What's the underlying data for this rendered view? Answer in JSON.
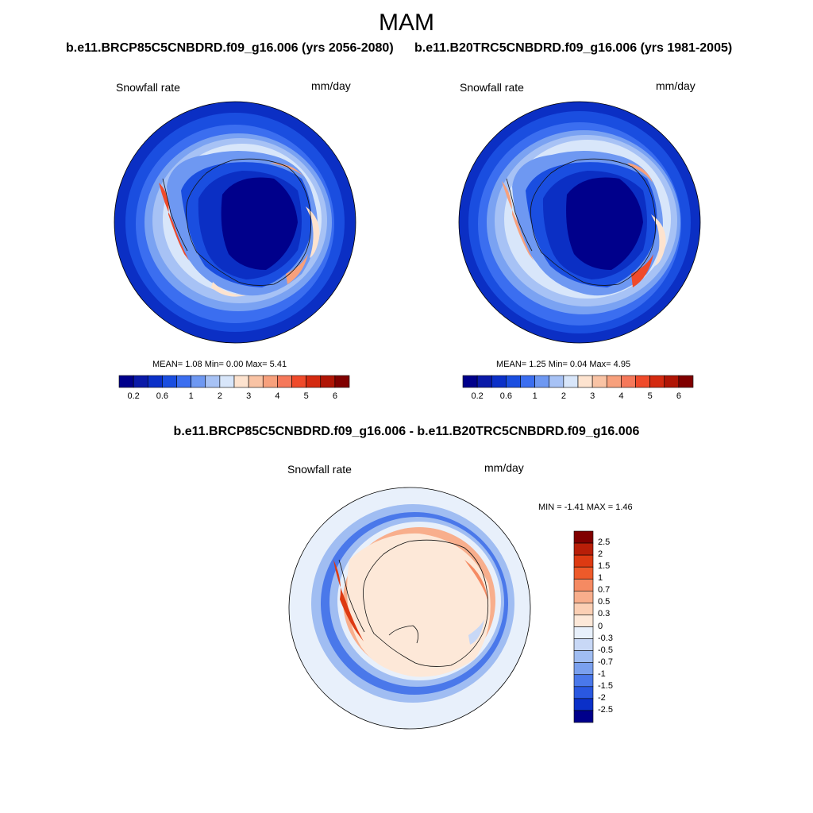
{
  "figure": {
    "title": "MAM",
    "panel_left": {
      "run_title": "b.e11.BRCP85C5CNBDRD.f09_g16.006 (yrs 2056-2080)",
      "variable": "Snowfall rate",
      "units": "mm/day",
      "stats": "MEAN=   1.08  Min=   0.00  Max=   5.41"
    },
    "panel_right": {
      "run_title": "b.e11.B20TRC5CNBDRD.f09_g16.006 (yrs 1981-2005)",
      "variable": "Snowfall rate",
      "units": "mm/day",
      "stats": "MEAN=   1.25  Min=   0.04  Max=   4.95"
    },
    "panel_diff": {
      "run_title": "b.e11.BRCP85C5CNBDRD.f09_g16.006 - b.e11.B20TRC5CNBDRD.f09_g16.006",
      "variable": "Snowfall rate",
      "units": "mm/day",
      "stats": "MIN =  -1.41 MAX =   1.46"
    },
    "colorbar_ticks": [
      "0.2",
      "0.6",
      "1",
      "2",
      "3",
      "4",
      "5",
      "6"
    ],
    "colorbar_colors": [
      "#00008b",
      "#0a1aa8",
      "#0b30c8",
      "#1a4ee0",
      "#3b6ef0",
      "#6e98f2",
      "#a7c2f5",
      "#d8e6fa",
      "#fde3cf",
      "#f9c3a4",
      "#f7a07c",
      "#f5785a",
      "#ef4a2a",
      "#d42a10",
      "#b01505",
      "#800000"
    ],
    "diff_colorbar_ticks": [
      "2.5",
      "2",
      "1.5",
      "1",
      "0.7",
      "0.5",
      "0.3",
      "0",
      "-0.3",
      "-0.5",
      "-0.7",
      "-1",
      "-1.5",
      "-2",
      "-2.5"
    ],
    "diff_colorbar_colors": [
      "#800000",
      "#b81e08",
      "#dd3a12",
      "#ee5a2a",
      "#f58a62",
      "#f8ae8c",
      "#fbcfb4",
      "#fde8d8",
      "#e8f0fb",
      "#c8d8f6",
      "#a0bdf2",
      "#7aa0ee",
      "#4a78ea",
      "#2a58e0",
      "#0b30c8",
      "#00008b"
    ]
  }
}
